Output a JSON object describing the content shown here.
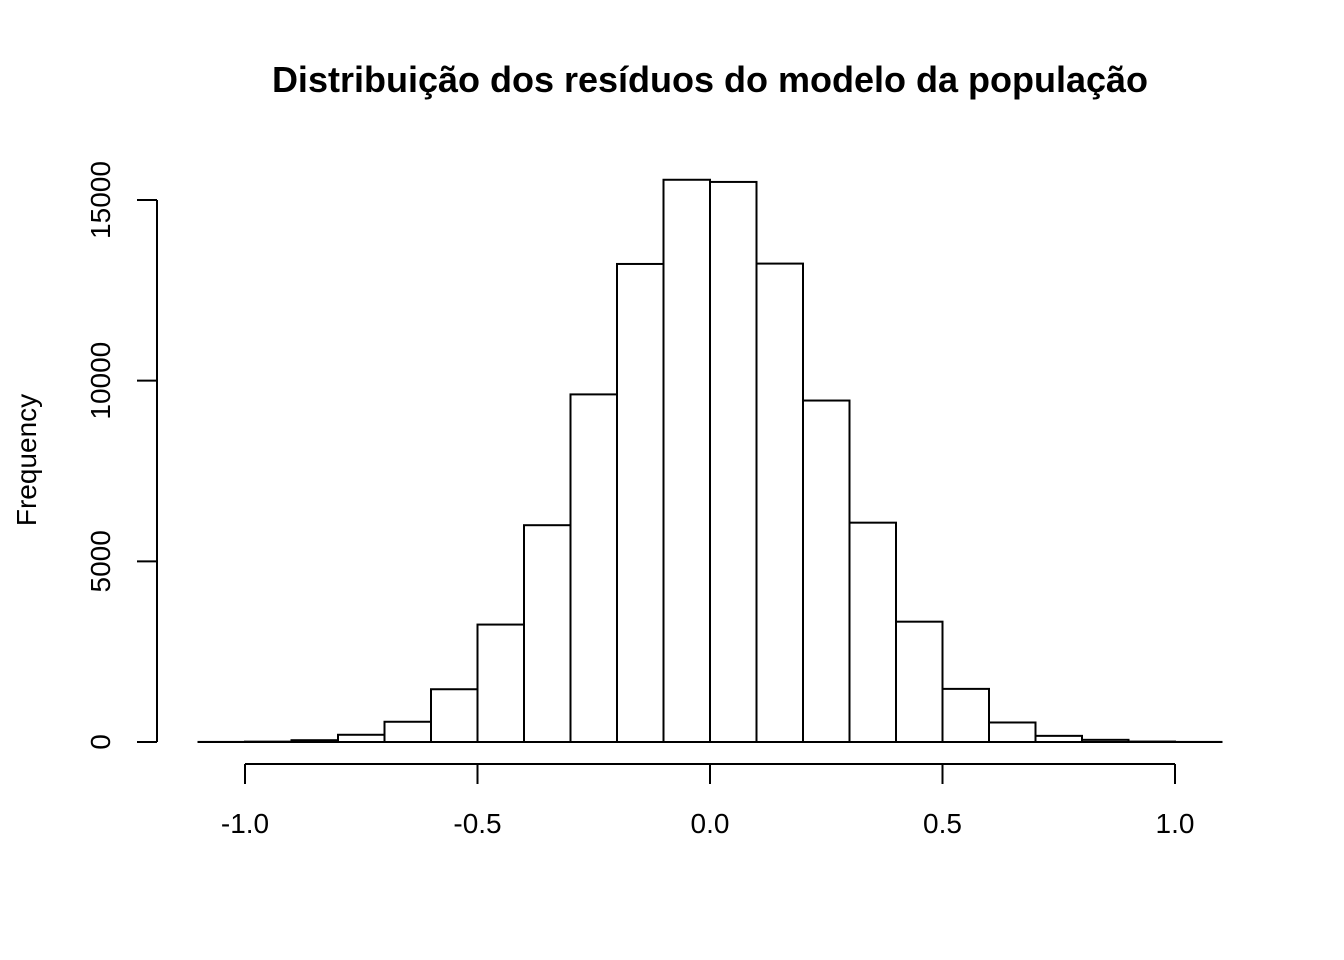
{
  "chart_data": {
    "type": "bar",
    "title": "Distribuição dos resíduos do modelo da população",
    "xlabel": "",
    "ylabel": "Frequency",
    "bin_edges": [
      -1.1,
      -1.0,
      -0.9,
      -0.8,
      -0.7,
      -0.6,
      -0.5,
      -0.4,
      -0.3,
      -0.2,
      -0.1,
      0.0,
      0.1,
      0.2,
      0.3,
      0.4,
      0.5,
      0.6,
      0.7,
      0.8,
      0.9,
      1.0,
      1.1
    ],
    "values": [
      2,
      10,
      50,
      200,
      560,
      1460,
      3250,
      6000,
      9620,
      13230,
      15560,
      15500,
      13240,
      9450,
      6070,
      3330,
      1470,
      540,
      170,
      60,
      12,
      2
    ],
    "x_ticks": [
      -1.0,
      -0.5,
      0.0,
      0.5,
      1.0
    ],
    "x_tick_labels": [
      "-1.0",
      "-0.5",
      "0.0",
      "0.5",
      "1.0"
    ],
    "y_ticks": [
      0,
      5000,
      10000,
      15000
    ],
    "y_tick_labels": [
      "0",
      "5000",
      "10000",
      "15000"
    ],
    "xlim": [
      -1.1,
      1.1
    ],
    "ylim": [
      0,
      15000
    ],
    "grid": false,
    "bar_fill": "#ffffff",
    "bar_stroke": "#000000"
  }
}
